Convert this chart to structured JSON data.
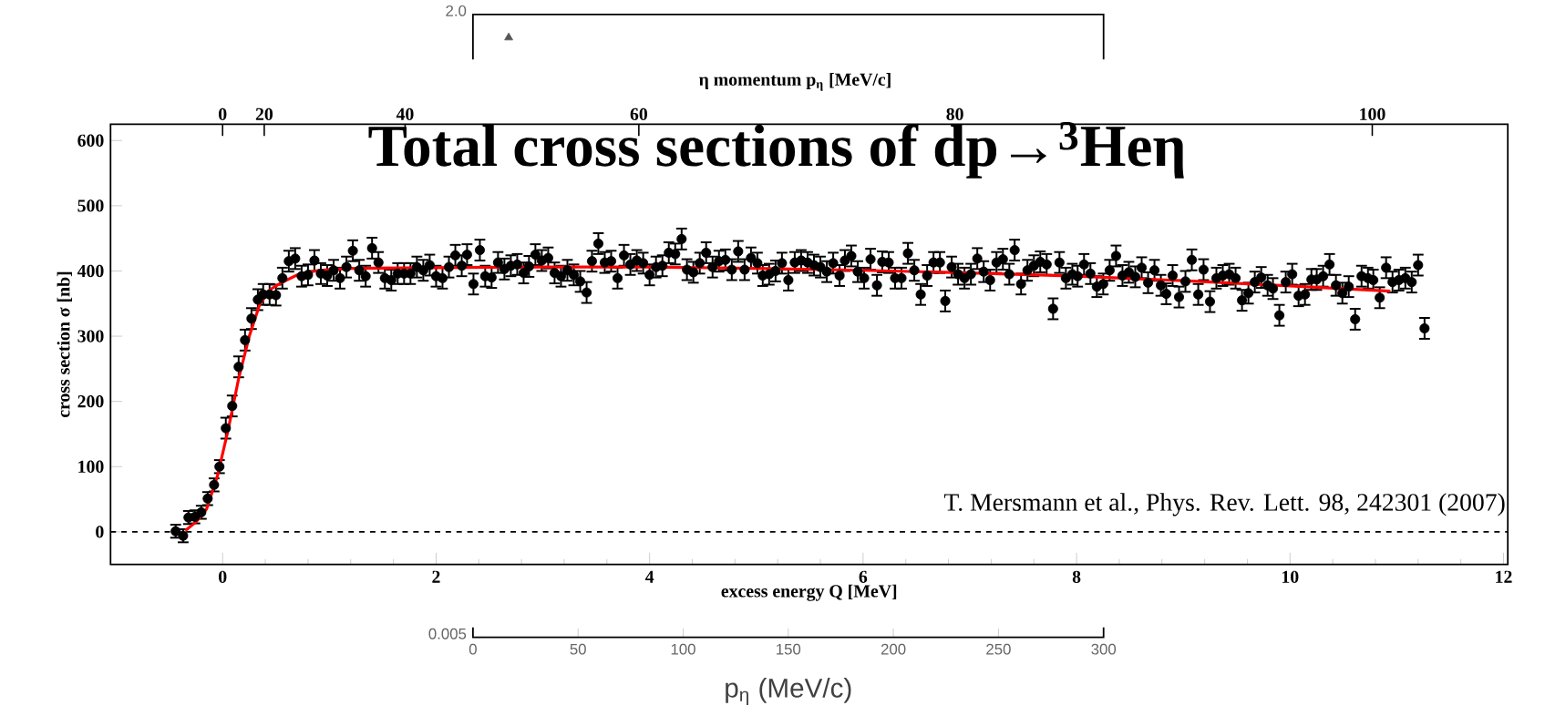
{
  "chart_data": [
    {
      "type": "scatter",
      "title": "Total cross sections of dp→$^{3}$Heη",
      "xlabel": "excess energy Q [MeV]",
      "ylabel": "cross section σ [nb]",
      "x2label": "η momentum p$_{η}$ [MeV/c]",
      "xlim": [
        -1.05,
        12.04
      ],
      "xticks": [
        0,
        2,
        4,
        6,
        8,
        10,
        12
      ],
      "ylim": [
        -50,
        625
      ],
      "yticks": [
        0,
        100,
        200,
        300,
        400,
        500,
        600
      ],
      "series": [
        {
          "color": "#000000",
          "marker": "circle",
          "x": [
            -0.44,
            -0.37,
            -0.32,
            -0.26,
            -0.2,
            -0.14,
            -0.08,
            -0.03,
            0.03,
            0.09,
            0.15,
            0.21,
            0.27,
            0.33,
            0.38,
            0.44,
            0.5,
            0.56,
            0.62,
            0.68,
            0.74,
            0.8,
            0.86,
            0.92,
            0.98,
            1.04,
            1.1,
            1.16,
            1.22,
            1.28,
            1.34,
            1.4,
            1.46,
            1.52,
            1.58,
            1.64,
            1.7,
            1.76,
            1.82,
            1.88,
            1.94,
            2.0,
            2.06,
            2.12,
            2.18,
            2.24,
            2.29,
            2.35,
            2.41,
            2.46,
            2.52,
            2.58,
            2.64,
            2.7,
            2.76,
            2.82,
            2.87,
            2.93,
            2.99,
            3.05,
            3.11,
            3.17,
            3.23,
            3.29,
            3.35,
            3.41,
            3.46,
            3.52,
            3.58,
            3.64,
            3.7,
            3.76,
            3.82,
            3.88,
            3.94,
            4.0,
            4.06,
            4.12,
            4.18,
            4.24,
            4.3,
            4.35,
            4.41,
            4.47,
            4.53,
            4.59,
            4.65,
            4.71,
            4.77,
            4.83,
            4.89,
            4.95,
            5.01,
            5.06,
            5.12,
            5.18,
            5.24,
            5.3,
            5.36,
            5.42,
            5.48,
            5.54,
            5.6,
            5.66,
            5.72,
            5.78,
            5.83,
            5.89,
            5.95,
            6.01,
            6.07,
            6.13,
            6.18,
            6.24,
            6.3,
            6.36,
            6.42,
            6.48,
            6.54,
            6.6,
            6.66,
            6.72,
            6.77,
            6.83,
            6.89,
            6.95,
            7.01,
            7.07,
            7.13,
            7.19,
            7.25,
            7.31,
            7.37,
            7.42,
            7.48,
            7.54,
            7.6,
            7.66,
            7.72,
            7.78,
            7.84,
            7.9,
            7.96,
            8.01,
            8.07,
            8.13,
            8.19,
            8.25,
            8.31,
            8.37,
            8.43,
            8.49,
            8.55,
            8.61,
            8.67,
            8.73,
            8.79,
            8.84,
            8.9,
            8.96,
            9.02,
            9.08,
            9.14,
            9.19,
            9.25,
            9.31,
            9.37,
            9.43,
            9.49,
            9.55,
            9.61,
            9.67,
            9.73,
            9.79,
            9.84,
            9.9,
            9.96,
            10.02,
            10.08,
            10.14,
            10.2,
            10.25,
            10.31,
            10.37,
            10.43,
            10.49,
            10.55,
            10.61,
            10.67,
            10.73,
            10.78,
            10.84,
            10.9,
            10.96,
            11.02,
            11.08,
            11.14,
            11.2,
            11.26
          ],
          "values": [
            1,
            -6,
            22,
            23,
            30,
            51,
            72,
            100,
            159,
            193,
            253,
            294,
            327,
            356,
            364,
            364,
            363,
            389,
            415,
            419,
            392,
            394,
            416,
            396,
            393,
            401,
            389,
            406,
            431,
            401,
            392,
            435,
            413,
            389,
            386,
            396,
            396,
            396,
            406,
            401,
            409,
            392,
            389,
            406,
            424,
            408,
            425,
            380,
            432,
            392,
            390,
            413,
            403,
            408,
            410,
            397,
            407,
            425,
            416,
            420,
            397,
            392,
            401,
            394,
            384,
            367,
            415,
            442,
            413,
            415,
            389,
            424,
            410,
            416,
            412,
            394,
            406,
            408,
            428,
            426,
            449,
            402,
            398,
            412,
            428,
            406,
            415,
            417,
            402,
            430,
            402,
            420,
            412,
            393,
            395,
            400,
            412,
            386,
            413,
            416,
            413,
            409,
            406,
            399,
            412,
            393,
            416,
            423,
            399,
            389,
            418,
            378,
            414,
            413,
            389,
            389,
            427,
            401,
            364,
            393,
            413,
            413,
            354,
            406,
            395,
            389,
            395,
            419,
            399,
            386,
            413,
            418,
            395,
            432,
            380,
            401,
            408,
            414,
            410,
            342,
            413,
            389,
            395,
            392,
            410,
            396,
            376,
            380,
            401,
            423,
            393,
            398,
            391,
            405,
            382,
            401,
            378,
            365,
            393,
            360,
            384,
            417,
            364,
            402,
            353,
            389,
            393,
            395,
            389,
            355,
            366,
            383,
            390,
            378,
            373,
            332,
            383,
            395,
            362,
            364,
            387,
            387,
            392,
            410,
            378,
            366,
            376,
            326,
            392,
            389,
            386,
            359,
            405,
            383,
            386,
            389,
            383,
            409,
            312
          ],
          "errors": [
            10,
            10,
            10,
            10,
            10,
            10,
            10,
            10,
            16,
            16,
            16,
            16,
            16,
            16,
            16,
            16,
            16,
            16,
            16,
            16,
            16,
            16,
            16,
            16,
            16,
            16,
            16,
            16,
            16,
            16,
            16,
            16,
            16,
            16,
            16,
            16,
            16,
            16,
            16,
            16,
            16,
            16,
            16,
            16,
            16,
            16,
            16,
            16,
            16,
            16,
            16,
            16,
            16,
            16,
            16,
            16,
            16,
            16,
            16,
            16,
            16,
            16,
            16,
            16,
            16,
            16,
            16,
            16,
            16,
            16,
            16,
            16,
            16,
            16,
            16,
            16,
            16,
            16,
            16,
            16,
            16,
            16,
            16,
            16,
            16,
            16,
            16,
            16,
            16,
            16,
            16,
            16,
            16,
            16,
            16,
            16,
            16,
            16,
            16,
            16,
            16,
            16,
            16,
            16,
            16,
            16,
            16,
            16,
            16,
            16,
            16,
            16,
            16,
            16,
            16,
            16,
            16,
            16,
            16,
            16,
            16,
            16,
            16,
            16,
            16,
            16,
            16,
            16,
            16,
            16,
            16,
            16,
            16,
            16,
            16,
            16,
            16,
            16,
            16,
            16,
            16,
            16,
            16,
            16,
            16,
            16,
            16,
            16,
            16,
            16,
            16,
            16,
            16,
            16,
            16,
            16,
            16,
            16,
            16,
            16,
            16,
            16,
            16,
            16,
            16,
            16,
            16,
            16,
            16,
            16,
            16,
            16,
            16,
            16,
            16,
            16,
            16,
            16,
            16,
            16,
            16,
            16,
            16,
            16,
            16,
            16,
            16,
            16,
            16,
            16,
            16,
            16,
            16,
            16,
            16,
            16,
            16,
            16,
            16
          ]
        },
        {
          "type": "line",
          "color": "#ff0000",
          "marker": "none",
          "x": [
            -0.35,
            -0.25,
            -0.15,
            -0.05,
            0.05,
            0.15,
            0.25,
            0.35,
            0.45,
            0.55,
            0.7,
            0.9,
            1.2,
            2,
            3,
            4,
            5,
            6,
            7,
            8,
            9,
            10,
            10.94
          ],
          "values": [
            2,
            15,
            35,
            85,
            155,
            235,
            300,
            350,
            372,
            382,
            394,
            401,
            404,
            405,
            406,
            406,
            404,
            401,
            397,
            392,
            385,
            377,
            369
          ]
        }
      ],
      "ref_lines": [
        {
          "axis": "y",
          "value": 0,
          "color": "#000000",
          "line_style": "dashed"
        }
      ],
      "annotations": [
        "0",
        "20",
        "40",
        "60",
        "80",
        "100",
        "T. Mersmann et al., Phys. Rev. Lett. 98, 242301 (2007)"
      ]
    },
    {
      "type": "scatter",
      "xlabel": "p$_{η}$ (MeV/c)",
      "xlim": [
        0,
        300
      ],
      "xticks": [
        0,
        50,
        100,
        150,
        200,
        250,
        300
      ],
      "ylim": [
        0.005,
        2
      ],
      "yticks": [
        {
          "value": 0.005,
          "label": "0.005"
        },
        {
          "value": 2,
          "label": "2.0"
        }
      ],
      "log": "y",
      "marker": "triangle",
      "series": [
        {
          "color": "#555555",
          "x": [
            17
          ],
          "values": [
            1.6
          ]
        }
      ]
    }
  ]
}
